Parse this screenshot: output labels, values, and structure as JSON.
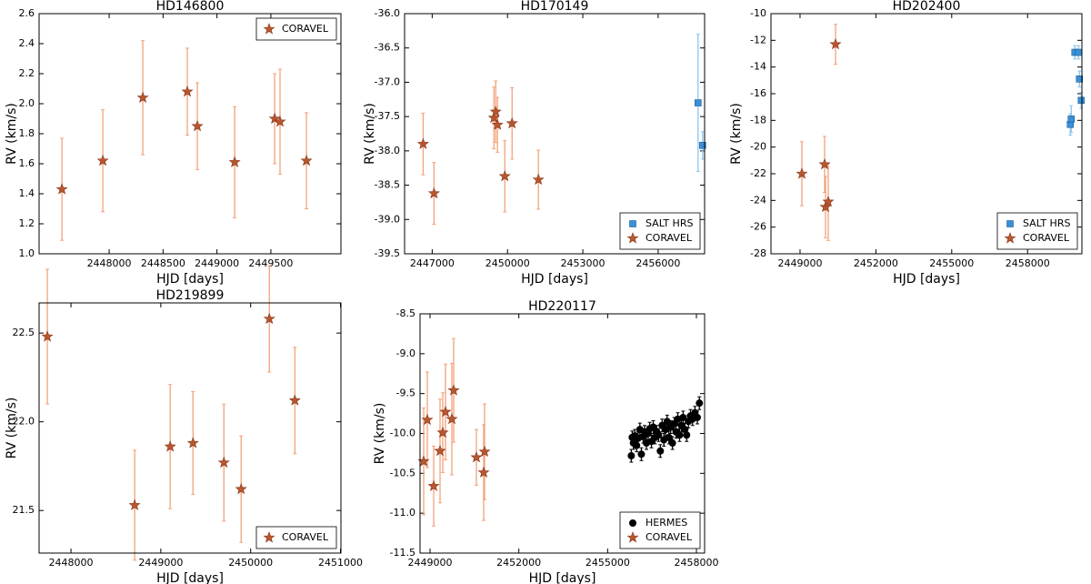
{
  "chart_data": [
    {
      "type": "scatter",
      "title": "HD146800",
      "xlabel": "HJD [days]",
      "ylabel": "RV (km/s)",
      "legend": "upper right",
      "xlim": [
        2447350,
        2450150
      ],
      "xticks": [
        2448000,
        2448500,
        2449000,
        2449500
      ],
      "ylim": [
        1.0,
        2.6
      ],
      "yticks": [
        {
          "value": 1.0,
          "label": "1.0"
        },
        1.2,
        1.4,
        1.6,
        1.8,
        {
          "value": 2.0,
          "label": "2.0"
        },
        2.2,
        2.4,
        2.6
      ],
      "series": [
        {
          "name": "CORAVEL",
          "marker": "star",
          "color": "#b8562f",
          "errcolor": "#f2a27a",
          "x": [
            2447562,
            2447941,
            2448312,
            2448725,
            2448818,
            2449164,
            2449535,
            2449585,
            2449830
          ],
          "values": [
            1.43,
            1.62,
            2.04,
            2.08,
            1.85,
            1.61,
            1.9,
            1.88,
            1.62
          ],
          "errors": [
            0.34,
            0.34,
            0.38,
            0.29,
            0.29,
            0.37,
            0.3,
            0.35,
            0.32
          ]
        }
      ]
    },
    {
      "type": "scatter",
      "title": "HD170149",
      "xlabel": "HJD [days]",
      "ylabel": "RV (km/s)",
      "legend": "lower right",
      "xlim": [
        2445900,
        2457850
      ],
      "xticks": [
        2447000,
        2450000,
        2453000,
        2456000
      ],
      "ylim": [
        -39.5,
        -36.0
      ],
      "yticks": [
        {
          "value": -36.0,
          "label": "-36.0"
        },
        -36.5,
        {
          "value": -37.0,
          "label": "-37.0"
        },
        -37.5,
        {
          "value": -38.0,
          "label": "-38.0"
        },
        -38.5,
        {
          "value": -39.0,
          "label": "-39.0"
        },
        -39.5
      ],
      "series": [
        {
          "name": "SALT HRS",
          "marker": "square",
          "color": "#3a8fd6",
          "errcolor": "#8cc6ef",
          "x": [
            2457590,
            2457771
          ],
          "values": [
            -37.3,
            -37.92
          ],
          "errors": [
            1.0,
            0.2
          ]
        },
        {
          "name": "CORAVEL",
          "marker": "star",
          "color": "#b8562f",
          "errcolor": "#f2a27a",
          "x": [
            2446639,
            2447072,
            2449458,
            2449530,
            2449602,
            2449892,
            2450181,
            2451229
          ],
          "values": [
            -37.9,
            -38.62,
            -37.52,
            -37.43,
            -37.62,
            -38.37,
            -37.6,
            -38.42
          ],
          "errors": [
            0.45,
            0.45,
            0.45,
            0.45,
            0.4,
            0.52,
            0.52,
            0.43
          ]
        }
      ]
    },
    {
      "type": "scatter",
      "title": "HD202400",
      "xlabel": "HJD [days]",
      "ylabel": "RV (km/s)",
      "legend": "lower right",
      "xlim": [
        2447850,
        2460150
      ],
      "xticks": [
        2449000,
        2452000,
        2455000,
        2458000
      ],
      "ylim": [
        -28,
        -10
      ],
      "yticks": [
        -10,
        -12,
        -14,
        -16,
        -18,
        -20,
        -22,
        -24,
        -26,
        -28
      ],
      "series": [
        {
          "name": "SALT HRS",
          "marker": "square",
          "color": "#3a8fd6",
          "errcolor": "#8cc6ef",
          "x": [
            2459692,
            2459728,
            2459872,
            2460016,
            2460052,
            2460124
          ],
          "values": [
            -18.3,
            -17.9,
            -12.9,
            -12.9,
            -14.9,
            -16.5
          ],
          "errors": [
            0.8,
            1.0,
            0.5,
            0.5,
            0.6,
            0.6
          ]
        },
        {
          "name": "CORAVEL",
          "marker": "star",
          "color": "#b8562f",
          "errcolor": "#f2a27a",
          "x": [
            2449072,
            2449972,
            2450008,
            2450116,
            2450404
          ],
          "values": [
            -22.0,
            -21.3,
            -24.5,
            -24.1,
            -12.3
          ],
          "errors": [
            2.4,
            2.1,
            2.3,
            2.9,
            1.5
          ]
        }
      ]
    },
    {
      "type": "scatter",
      "title": "HD219899",
      "xlabel": "HJD [days]",
      "ylabel": "RV (km/s)",
      "legend": "lower right",
      "xlim": [
        2447645,
        2451005
      ],
      "xticks": [
        2448000,
        2449000,
        2450000,
        2451000
      ],
      "ylim": [
        21.26,
        22.67
      ],
      "yticks": [
        21.5,
        {
          "value": 22.0,
          "label": "22.0"
        },
        22.5
      ],
      "series": [
        {
          "name": "CORAVEL",
          "marker": "star",
          "color": "#b8562f",
          "errcolor": "#f2a27a",
          "x": [
            2447737,
            2448709,
            2449104,
            2449358,
            2449702,
            2449894,
            2450208,
            2450492
          ],
          "values": [
            22.48,
            21.53,
            21.86,
            21.88,
            21.77,
            21.62,
            22.58,
            22.12
          ],
          "errors": [
            0.38,
            0.31,
            0.35,
            0.29,
            0.33,
            0.3,
            0.3,
            0.3
          ]
        }
      ]
    },
    {
      "type": "scatter",
      "title": "HD220117",
      "xlabel": "HJD [days]",
      "ylabel": "RV (km/s)",
      "legend": "lower right",
      "xlim": [
        2448662,
        2458276
      ],
      "xticks": [
        2449000,
        2452000,
        2455000,
        2458000
      ],
      "ylim": [
        -11.5,
        -8.5
      ],
      "yticks": [
        -8.5,
        {
          "value": -9.0,
          "label": "-9.0"
        },
        -9.5,
        {
          "value": -10.0,
          "label": "-10.0"
        },
        -10.5,
        {
          "value": -11.0,
          "label": "-11.0"
        },
        -11.5
      ],
      "series": [
        {
          "name": "HERMES",
          "marker": "circle",
          "color": "#000000",
          "errcolor": "#000000",
          "x": [
            2455800,
            2455830,
            2455870,
            2455920,
            2455980,
            2456030,
            2456090,
            2456140,
            2456200,
            2456250,
            2456310,
            2456370,
            2456420,
            2456480,
            2456540,
            2456600,
            2456660,
            2456720,
            2456780,
            2456840,
            2456900,
            2456960,
            2457010,
            2457070,
            2457130,
            2457190,
            2457250,
            2457310,
            2457370,
            2457430,
            2457490,
            2457550,
            2457610,
            2457670,
            2457730,
            2457800,
            2457870,
            2457950,
            2458030,
            2458100
          ],
          "values": [
            -10.28,
            -10.05,
            -10.12,
            -10.03,
            -10.15,
            -10.06,
            -9.95,
            -10.26,
            -10.04,
            -9.98,
            -10.12,
            -10.0,
            -9.94,
            -10.1,
            -9.92,
            -10.05,
            -9.98,
            -10.02,
            -10.22,
            -9.9,
            -10.08,
            -9.95,
            -9.85,
            -10.05,
            -9.92,
            -10.12,
            -9.88,
            -9.98,
            -9.82,
            -10.02,
            -9.9,
            -9.8,
            -9.95,
            -10.02,
            -9.85,
            -9.78,
            -9.82,
            -9.74,
            -9.8,
            -9.62
          ],
          "errors": [
            0.08,
            0.08,
            0.08,
            0.08,
            0.08,
            0.08,
            0.08,
            0.08,
            0.08,
            0.08,
            0.08,
            0.08,
            0.08,
            0.08,
            0.08,
            0.08,
            0.08,
            0.08,
            0.08,
            0.08,
            0.08,
            0.08,
            0.08,
            0.08,
            0.08,
            0.08,
            0.08,
            0.08,
            0.08,
            0.08,
            0.08,
            0.08,
            0.08,
            0.08,
            0.08,
            0.08,
            0.08,
            0.08,
            0.08,
            0.08
          ]
        },
        {
          "name": "CORAVEL",
          "marker": "star",
          "color": "#b8562f",
          "errcolor": "#f2a27a",
          "x": [
            2448785,
            2448908,
            2449123,
            2449338,
            2449430,
            2449522,
            2449737,
            2449798,
            2450566,
            2450812,
            2450842
          ],
          "values": [
            -10.35,
            -9.83,
            -10.66,
            -10.22,
            -9.99,
            -9.73,
            -9.82,
            -9.46,
            -10.3,
            -10.49,
            -10.23
          ],
          "errors": [
            0.67,
            0.6,
            0.5,
            0.65,
            0.5,
            0.6,
            0.7,
            0.65,
            0.35,
            0.6,
            0.6
          ]
        }
      ]
    }
  ]
}
